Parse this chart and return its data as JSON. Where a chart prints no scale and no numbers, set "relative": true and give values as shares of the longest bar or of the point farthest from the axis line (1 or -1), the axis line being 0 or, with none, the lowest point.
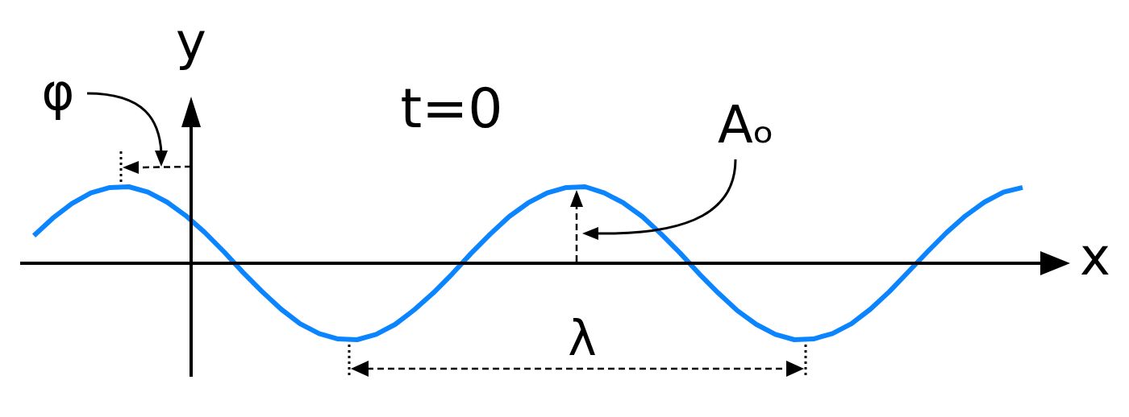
{
  "chart_data": {
    "type": "line",
    "relative": true,
    "xlabel": "x",
    "ylabel": "y",
    "annotations": [
      "φ",
      "t=0",
      "Aₒ",
      "λ"
    ],
    "categories": [
      null,
      null,
      null,
      null,
      null,
      null,
      null,
      null,
      null,
      null,
      null,
      null,
      null,
      null,
      null,
      null,
      null,
      null,
      null,
      null,
      null,
      null,
      null,
      null,
      null,
      null,
      null,
      null,
      null,
      null,
      null,
      null,
      null,
      null,
      null,
      null,
      null,
      null,
      null,
      null,
      null,
      null,
      null,
      null,
      null,
      null,
      null,
      null,
      null,
      null,
      null,
      null,
      null
    ],
    "series": [
      {
        "color": "#0a84ff",
        "values": [
          0.36,
          0.59,
          0.78,
          0.92,
          0.99,
          1,
          0.93,
          0.8,
          0.62,
          0.4,
          0.15,
          -0.12,
          -0.37,
          -0.6,
          -0.79,
          -0.92,
          -0.99,
          -1,
          -0.93,
          -0.8,
          -0.61,
          -0.39,
          -0.14,
          0.13,
          0.38,
          0.61,
          0.79,
          0.92,
          0.99,
          1,
          0.92,
          0.79,
          0.61,
          0.38,
          0.13,
          -0.14,
          -0.39,
          -0.62,
          -0.8,
          -0.93,
          -1,
          -0.99,
          -0.92,
          -0.79,
          -0.6,
          -0.37,
          -0.11,
          0.15,
          0.4,
          0.62,
          0.8,
          0.93,
          0.99
        ]
      }
    ]
  }
}
